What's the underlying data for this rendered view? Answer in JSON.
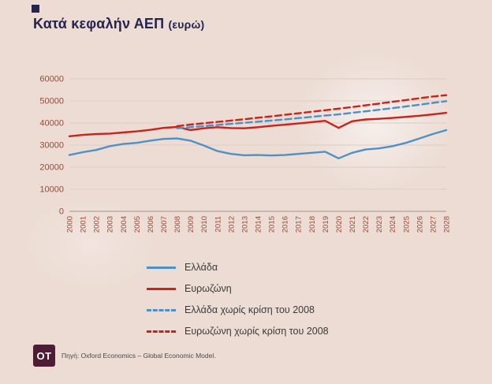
{
  "page": {
    "title": "Κατά κεφαλήν ΑΕΠ",
    "title_suffix": "(ευρώ)",
    "background": "#ECDCD4"
  },
  "colors": {
    "title": "#23254F",
    "brand_square": "#23254F",
    "greece": "#4E91C6",
    "eurozone": "#C9231B",
    "axis_label": "#9A4A38",
    "grid": "#DCCBC4",
    "axis_line": "#B5A29A",
    "logo_bg": "#4E1C35",
    "logo_text": "#FFFFFF",
    "legend_text": "#3B3B3B",
    "source_text": "#4A4A4A"
  },
  "source": {
    "logo": "OT",
    "text": "Πηγή: Oxford Economics – Global Economic Model."
  },
  "chart_data": {
    "type": "line",
    "title": "Κατά κεφαλήν ΑΕΠ (ευρώ)",
    "xlabel": "",
    "ylabel": "",
    "ylim": [
      0,
      60000
    ],
    "yticks": [
      0,
      10000,
      20000,
      30000,
      40000,
      50000,
      60000
    ],
    "grid": true,
    "legend_position": "bottom-left",
    "x": [
      2000,
      2001,
      2002,
      2003,
      2004,
      2005,
      2006,
      2007,
      2008,
      2009,
      2010,
      2011,
      2012,
      2013,
      2014,
      2015,
      2016,
      2017,
      2018,
      2019,
      2020,
      2021,
      2022,
      2023,
      2024,
      2025,
      2026,
      2027,
      2028
    ],
    "series": [
      {
        "name": "Ελλάδα",
        "color_key": "greece",
        "style": "solid",
        "values": [
          25500,
          26800,
          27800,
          29500,
          30500,
          31000,
          32000,
          32800,
          33000,
          32000,
          29800,
          27300,
          26000,
          25400,
          25500,
          25300,
          25500,
          26000,
          26500,
          27000,
          24000,
          26500,
          28000,
          28500,
          29500,
          31000,
          33000,
          35000,
          36800
        ]
      },
      {
        "name": "Ευρωζώνη",
        "color_key": "eurozone",
        "style": "solid",
        "values": [
          34000,
          34600,
          35000,
          35200,
          35700,
          36200,
          36900,
          37800,
          38200,
          36800,
          37600,
          38100,
          37700,
          37600,
          38100,
          38700,
          39200,
          39800,
          40400,
          41000,
          37800,
          40800,
          41600,
          41900,
          42300,
          42800,
          43300,
          43900,
          44600
        ]
      },
      {
        "name": "Ελλάδα χωρίς κρίση του 2008",
        "color_key": "greece",
        "style": "dashed",
        "values": [
          null,
          null,
          null,
          null,
          null,
          null,
          null,
          null,
          37600,
          38100,
          38600,
          39100,
          39600,
          40100,
          40600,
          41100,
          41600,
          42200,
          42800,
          43400,
          43900,
          44600,
          45300,
          46000,
          46700,
          47500,
          48300,
          49100,
          49900
        ]
      },
      {
        "name": "Ευρωζώνη χωρίς κρίση του 2008",
        "color_key": "eurozone",
        "style": "dashed",
        "values": [
          null,
          null,
          null,
          null,
          null,
          null,
          null,
          null,
          38600,
          39300,
          39900,
          40500,
          41100,
          41700,
          42400,
          43000,
          43700,
          44400,
          45100,
          45800,
          46500,
          47200,
          48000,
          48800,
          49600,
          50400,
          51200,
          52000,
          52600
        ]
      }
    ]
  }
}
